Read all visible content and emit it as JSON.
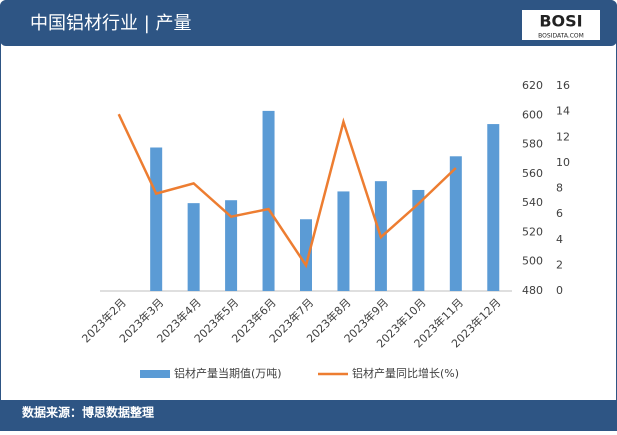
{
  "logo": {
    "name": "BOSI",
    "site": "BOSIDATA.COM"
  },
  "chart_data": {
    "type": "combo",
    "title": "中国铝材行业 | 产量",
    "categories": [
      "2023年2月",
      "2023年3月",
      "2023年4月",
      "2023年5月",
      "2023年6月",
      "2023年7月",
      "2023年8月",
      "2023年9月",
      "2023年10月",
      "2023年11月",
      "2023年12月"
    ],
    "series": [
      {
        "name": "铝材产量当期值(万吨)",
        "type": "bar",
        "color": "#5b9bd5",
        "axis": "y",
        "values": [
          null,
          578,
          540,
          542,
          603,
          529,
          548,
          555,
          549,
          572,
          594
        ]
      },
      {
        "name": "铝材产量同比增长(%)",
        "type": "line",
        "color": "#ed7d31",
        "axis": "y2",
        "values": [
          13.8,
          7.6,
          8.4,
          5.8,
          6.4,
          2.0,
          13.2,
          4.2,
          6.8,
          9.6,
          null
        ]
      }
    ],
    "ylim": [
      480,
      620
    ],
    "yticks": [
      480,
      500,
      520,
      540,
      560,
      580,
      600,
      620
    ],
    "y2lim": [
      0,
      16
    ],
    "y2ticks": [
      0,
      2,
      4,
      6,
      8,
      10,
      12,
      14,
      16
    ],
    "grid": false,
    "legend": "bottom",
    "source": "数据来源：博思数据整理"
  }
}
